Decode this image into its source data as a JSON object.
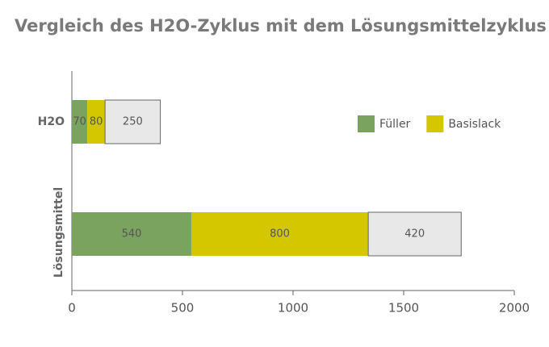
{
  "chart_data": {
    "type": "stacked_bar_horizontal",
    "title": "Vergleich des H2O-Zyklus mit dem Lösungsmittelzyklus",
    "categories": [
      "H2O",
      "Lösungsmittel"
    ],
    "series": [
      {
        "name": "Füller",
        "color": "#7aa35f",
        "values": [
          70,
          540
        ]
      },
      {
        "name": "Basislack",
        "color": "#d4c700",
        "values": [
          80,
          800
        ]
      },
      {
        "color": "#e8e8e8",
        "values": [
          250,
          420
        ]
      }
    ],
    "xlim": [
      0,
      2000
    ],
    "xticks": [
      0,
      500,
      1000,
      1500,
      2000
    ],
    "legend": "right"
  }
}
